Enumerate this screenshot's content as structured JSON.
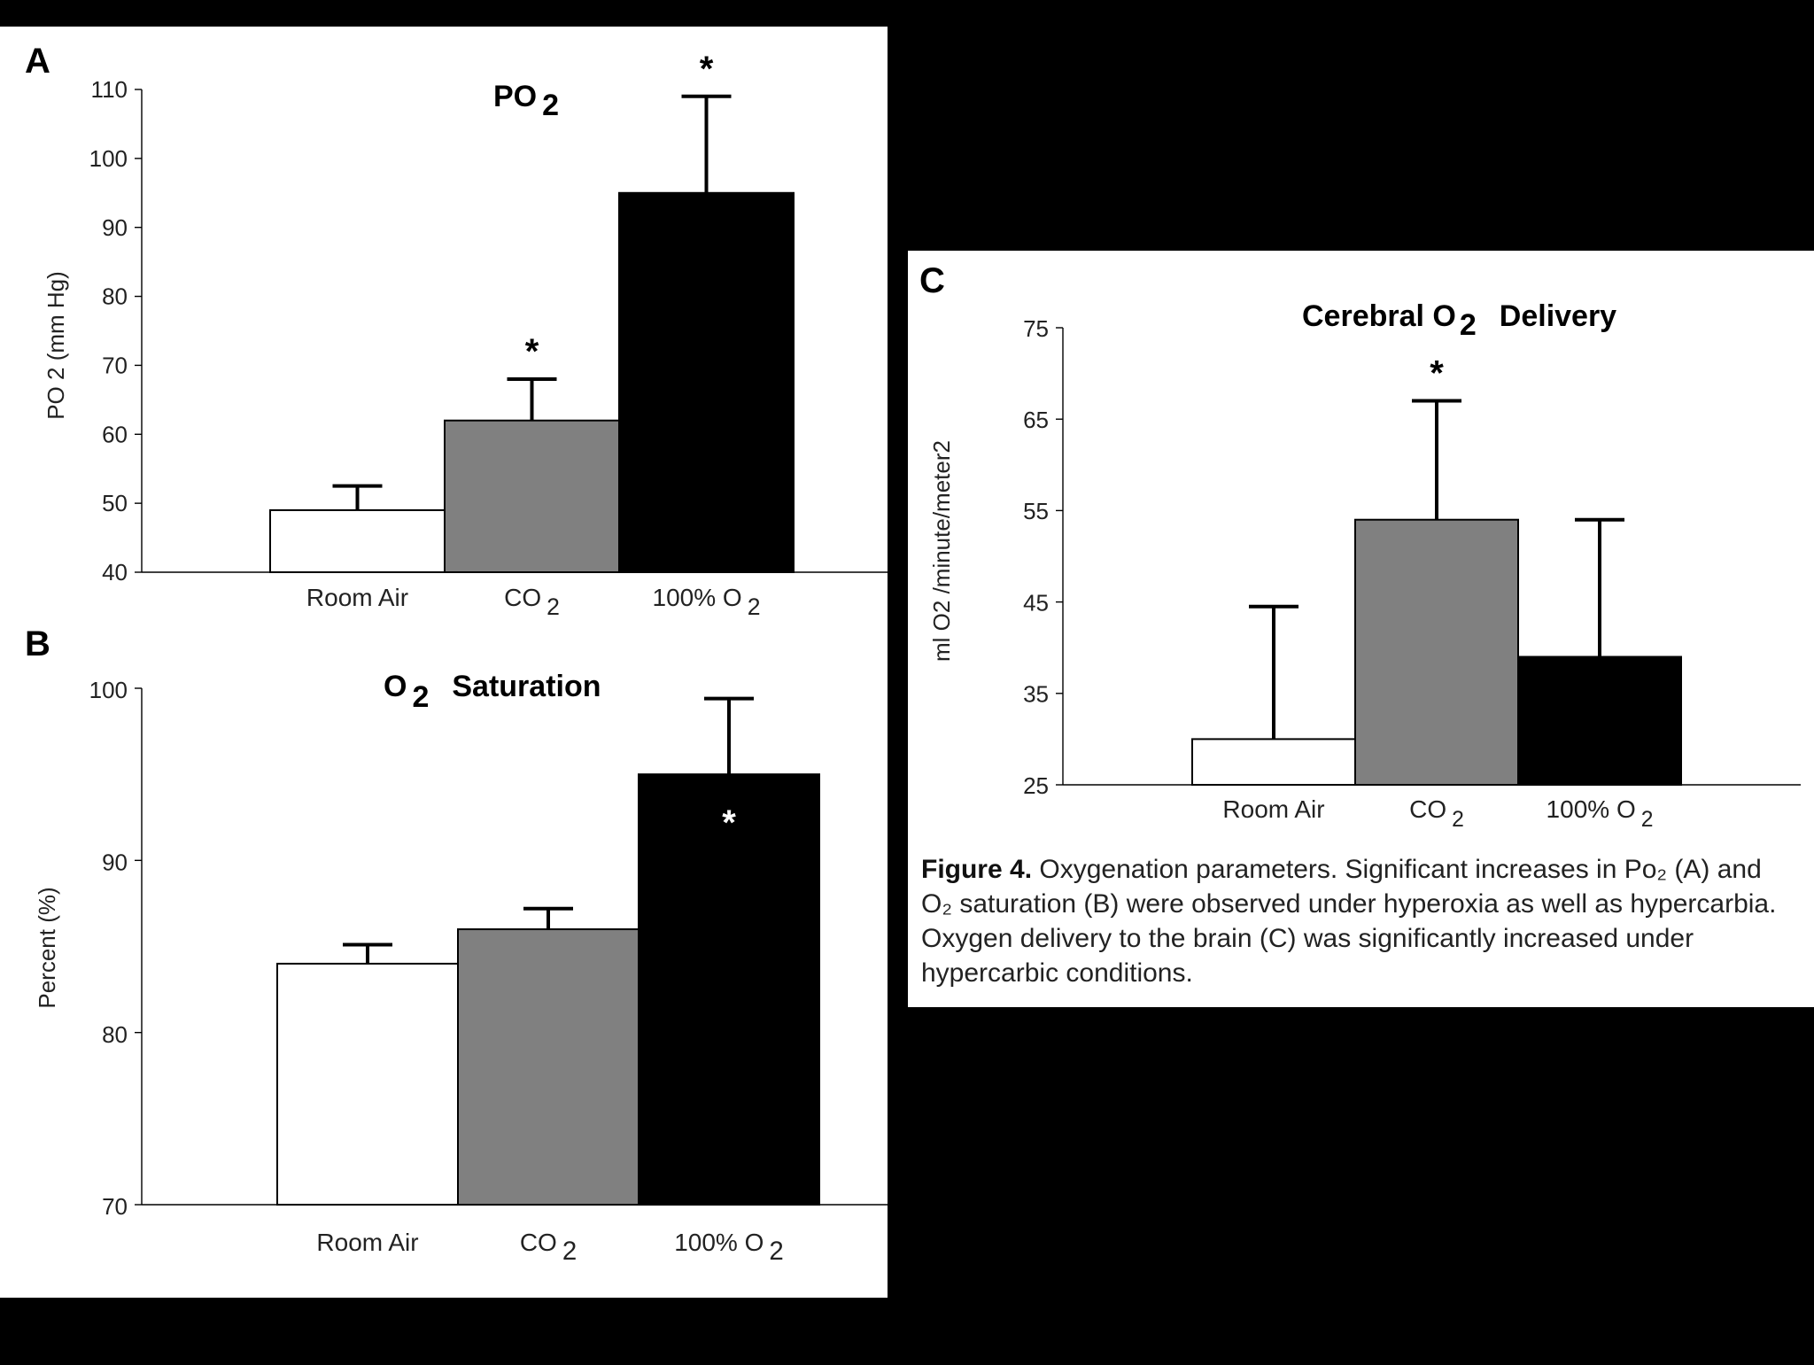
{
  "figure": {
    "caption_label": "Figure 4.",
    "caption_text": "Oxygenation parameters. Significant increases in Po₂ (A) and O₂ saturation (B) were observed under hyperoxia as well as hypercarbia. Oxygen delivery to the brain (C) was significantly increased under hypercarbic conditions."
  },
  "chart_data": [
    {
      "panel": "A",
      "type": "bar",
      "title": "PO",
      "title_sub": "2",
      "ylabel": "PO 2 (mm Hg)",
      "xlabel": "",
      "ylim": [
        40,
        110
      ],
      "yticks": [
        40,
        50,
        60,
        70,
        80,
        90,
        100,
        110
      ],
      "categories": [
        {
          "label": "Room Air",
          "sub": ""
        },
        {
          "label": "CO",
          "sub": "2"
        },
        {
          "label": "100% O",
          "sub": "2"
        }
      ],
      "values": [
        49,
        62,
        95
      ],
      "error": [
        3.5,
        6,
        14
      ],
      "colors": [
        "#ffffff",
        "#808080",
        "#000000"
      ],
      "significance": [
        "",
        "*",
        "*"
      ]
    },
    {
      "panel": "B",
      "type": "bar",
      "title": "O",
      "title_sub": "2",
      "title_rest": "Saturation",
      "ylabel": "Percent (%)",
      "xlabel": "",
      "ylim": [
        70,
        100
      ],
      "yticks": [
        70,
        80,
        90,
        100
      ],
      "categories": [
        {
          "label": "Room Air",
          "sub": ""
        },
        {
          "label": "CO",
          "sub": "2"
        },
        {
          "label": "100% O",
          "sub": "2"
        }
      ],
      "values": [
        84,
        86,
        95
      ],
      "error": [
        1.1,
        1.2,
        4.4
      ],
      "colors": [
        "#ffffff",
        "#808080",
        "#000000"
      ],
      "significance": [
        "",
        "",
        "*"
      ]
    },
    {
      "panel": "C",
      "type": "bar",
      "title": "Cerebral O",
      "title_sub": "2",
      "title_rest": "Delivery",
      "ylabel": "ml O2 /minute/meter2",
      "xlabel": "",
      "ylim": [
        25,
        75
      ],
      "yticks": [
        25,
        35,
        45,
        55,
        65,
        75
      ],
      "categories": [
        {
          "label": "Room Air",
          "sub": ""
        },
        {
          "label": "CO",
          "sub": "2"
        },
        {
          "label": "100% O",
          "sub": "2"
        }
      ],
      "values": [
        30,
        54,
        39
      ],
      "error": [
        14.5,
        13,
        15
      ],
      "colors": [
        "#ffffff",
        "#808080",
        "#000000"
      ],
      "significance": [
        "",
        "*",
        ""
      ]
    }
  ]
}
